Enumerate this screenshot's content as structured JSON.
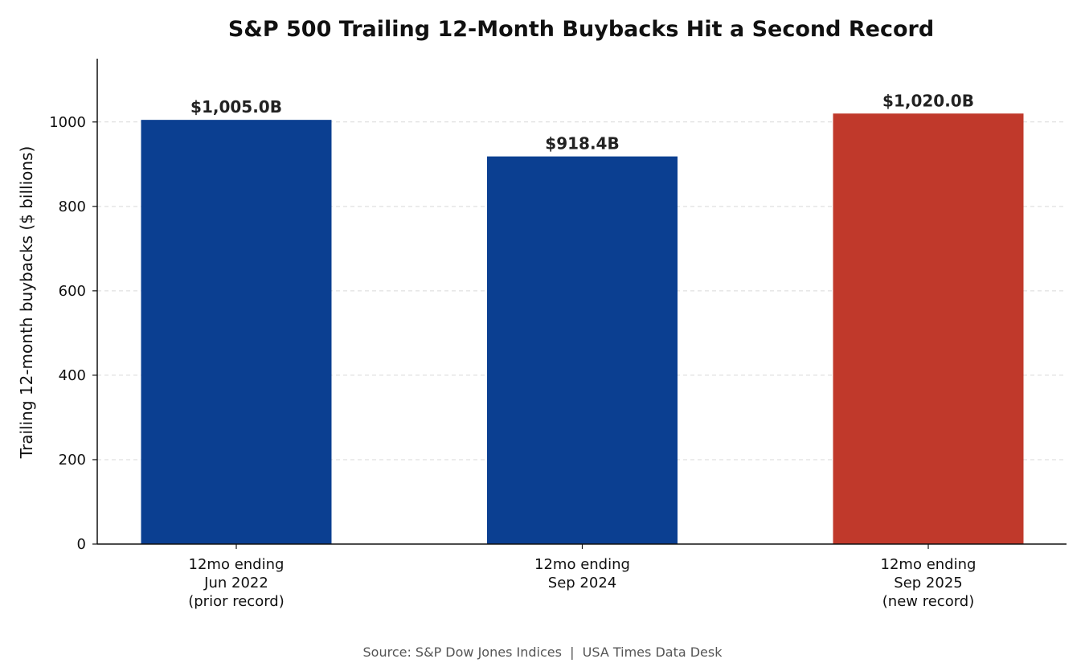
{
  "chart_data": {
    "type": "bar",
    "title": "S&P 500 Trailing 12-Month Buybacks Hit a Second Record",
    "xlabel": "",
    "ylabel": "Trailing 12-month buybacks ($ billions)",
    "ylim": [
      0,
      1150
    ],
    "yticks": [
      0,
      200,
      400,
      600,
      800,
      1000
    ],
    "grid": "y-dashed",
    "categories": [
      [
        "12mo ending",
        "Jun 2022",
        "(prior record)"
      ],
      [
        "12mo ending",
        "Sep 2024"
      ],
      [
        "12mo ending",
        "Sep 2025",
        "(new record)"
      ]
    ],
    "values": [
      1005.0,
      918.4,
      1020.0
    ],
    "data_labels": [
      "$1,005.0B",
      "$918.4B",
      "$1,020.0B"
    ],
    "colors": [
      "#0b3f91",
      "#0b3f91",
      "#c0392b"
    ]
  },
  "footer": {
    "source": "Source: S&P Dow Jones Indices  |  USA Times Data Desk"
  }
}
